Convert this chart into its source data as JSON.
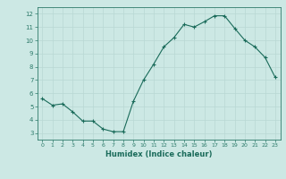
{
  "x": [
    0,
    1,
    2,
    3,
    4,
    5,
    6,
    7,
    8,
    9,
    10,
    11,
    12,
    13,
    14,
    15,
    16,
    17,
    18,
    19,
    20,
    21,
    22,
    23
  ],
  "y": [
    5.6,
    5.1,
    5.2,
    4.6,
    3.9,
    3.9,
    3.3,
    3.1,
    3.1,
    5.4,
    7.0,
    8.2,
    9.5,
    10.2,
    11.2,
    11.0,
    11.4,
    11.85,
    11.85,
    10.9,
    10.0,
    9.5,
    8.7,
    7.2
  ],
  "line_color": "#1a6b5a",
  "marker": "+",
  "marker_size": 3,
  "xlabel": "Humidex (Indice chaleur)",
  "xlim": [
    -0.5,
    23.5
  ],
  "ylim": [
    2.5,
    12.5
  ],
  "yticks": [
    3,
    4,
    5,
    6,
    7,
    8,
    9,
    10,
    11,
    12
  ],
  "xticks": [
    0,
    1,
    2,
    3,
    4,
    5,
    6,
    7,
    8,
    9,
    10,
    11,
    12,
    13,
    14,
    15,
    16,
    17,
    18,
    19,
    20,
    21,
    22,
    23
  ],
  "xtick_labels": [
    "0",
    "1",
    "2",
    "3",
    "4",
    "5",
    "6",
    "7",
    "8",
    "9",
    "10",
    "11",
    "12",
    "13",
    "14",
    "15",
    "16",
    "17",
    "18",
    "19",
    "20",
    "21",
    "22",
    "23"
  ],
  "grid_color": "#b8d8d4",
  "bg_color": "#cce8e4",
  "line_color_axis": "#2d7a6a",
  "tick_color": "#2d7a6a",
  "xlabel_color": "#1a6b5a"
}
